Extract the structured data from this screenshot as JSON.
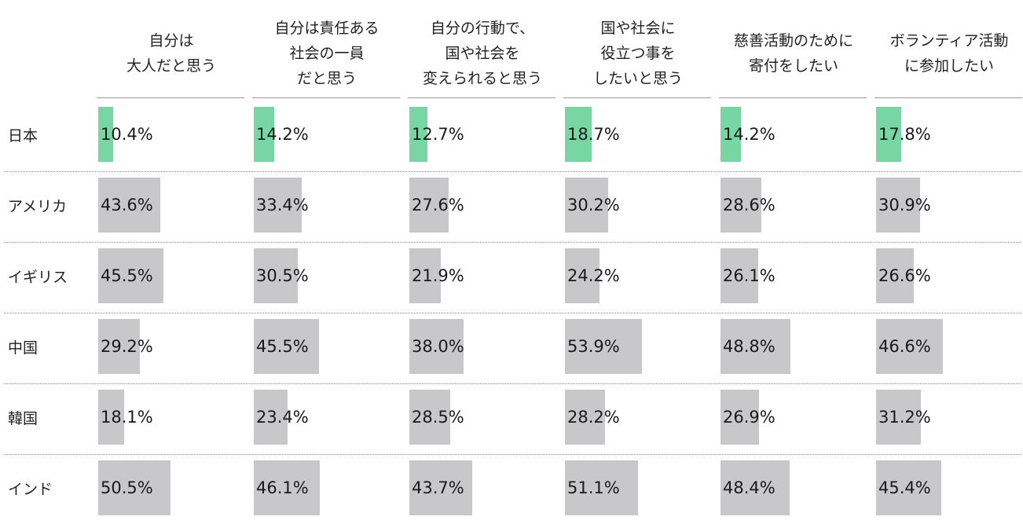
{
  "chart_data": {
    "type": "table",
    "categories": [
      "自分は\n大人だと思う",
      "自分は責任ある\n社会の一員\nだと思う",
      "自分の行動で、\n国や社会を\n変えられると思う",
      "国や社会に\n役立つ事を\nしたいと思う",
      "慈善活動のために\n寄付をしたい",
      "ボランティア活動\nに参加したい"
    ],
    "series": [
      {
        "name": "日本",
        "values": [
          10.4,
          14.2,
          12.7,
          18.7,
          14.2,
          17.8
        ],
        "labels": [
          "10.4%",
          "14.2%",
          "12.7%",
          "18.7%",
          "14.2%",
          "17.8%"
        ]
      },
      {
        "name": "アメリカ",
        "values": [
          43.6,
          33.4,
          27.6,
          30.2,
          28.6,
          30.9
        ],
        "labels": [
          "43.6%",
          "33.4%",
          "27.6%",
          "30.2%",
          "28.6%",
          "30.9%"
        ]
      },
      {
        "name": "イギリス",
        "values": [
          45.5,
          30.5,
          21.9,
          24.2,
          26.1,
          26.6
        ],
        "labels": [
          "45.5%",
          "30.5%",
          "21.9%",
          "24.2%",
          "26.1%",
          "26.6%"
        ]
      },
      {
        "name": "中国",
        "values": [
          29.2,
          45.5,
          38.0,
          53.9,
          48.8,
          46.6
        ],
        "labels": [
          "29.2%",
          "45.5%",
          "38.0%",
          "53.9%",
          "48.8%",
          "46.6%"
        ]
      },
      {
        "name": "韓国",
        "values": [
          18.1,
          23.4,
          28.5,
          28.2,
          26.9,
          31.2
        ],
        "labels": [
          "18.1%",
          "23.4%",
          "28.5%",
          "28.2%",
          "26.9%",
          "31.2%"
        ]
      },
      {
        "name": "インド",
        "values": [
          50.5,
          46.1,
          43.7,
          51.1,
          48.4,
          45.4
        ],
        "labels": [
          "50.5%",
          "46.1%",
          "43.7%",
          "51.1%",
          "48.4%",
          "45.4%"
        ]
      }
    ],
    "unit": "%",
    "highlight_series": "日本",
    "colors": {
      "highlight": "#78d6a4",
      "default": "#c8c8ca"
    },
    "grid": false
  }
}
